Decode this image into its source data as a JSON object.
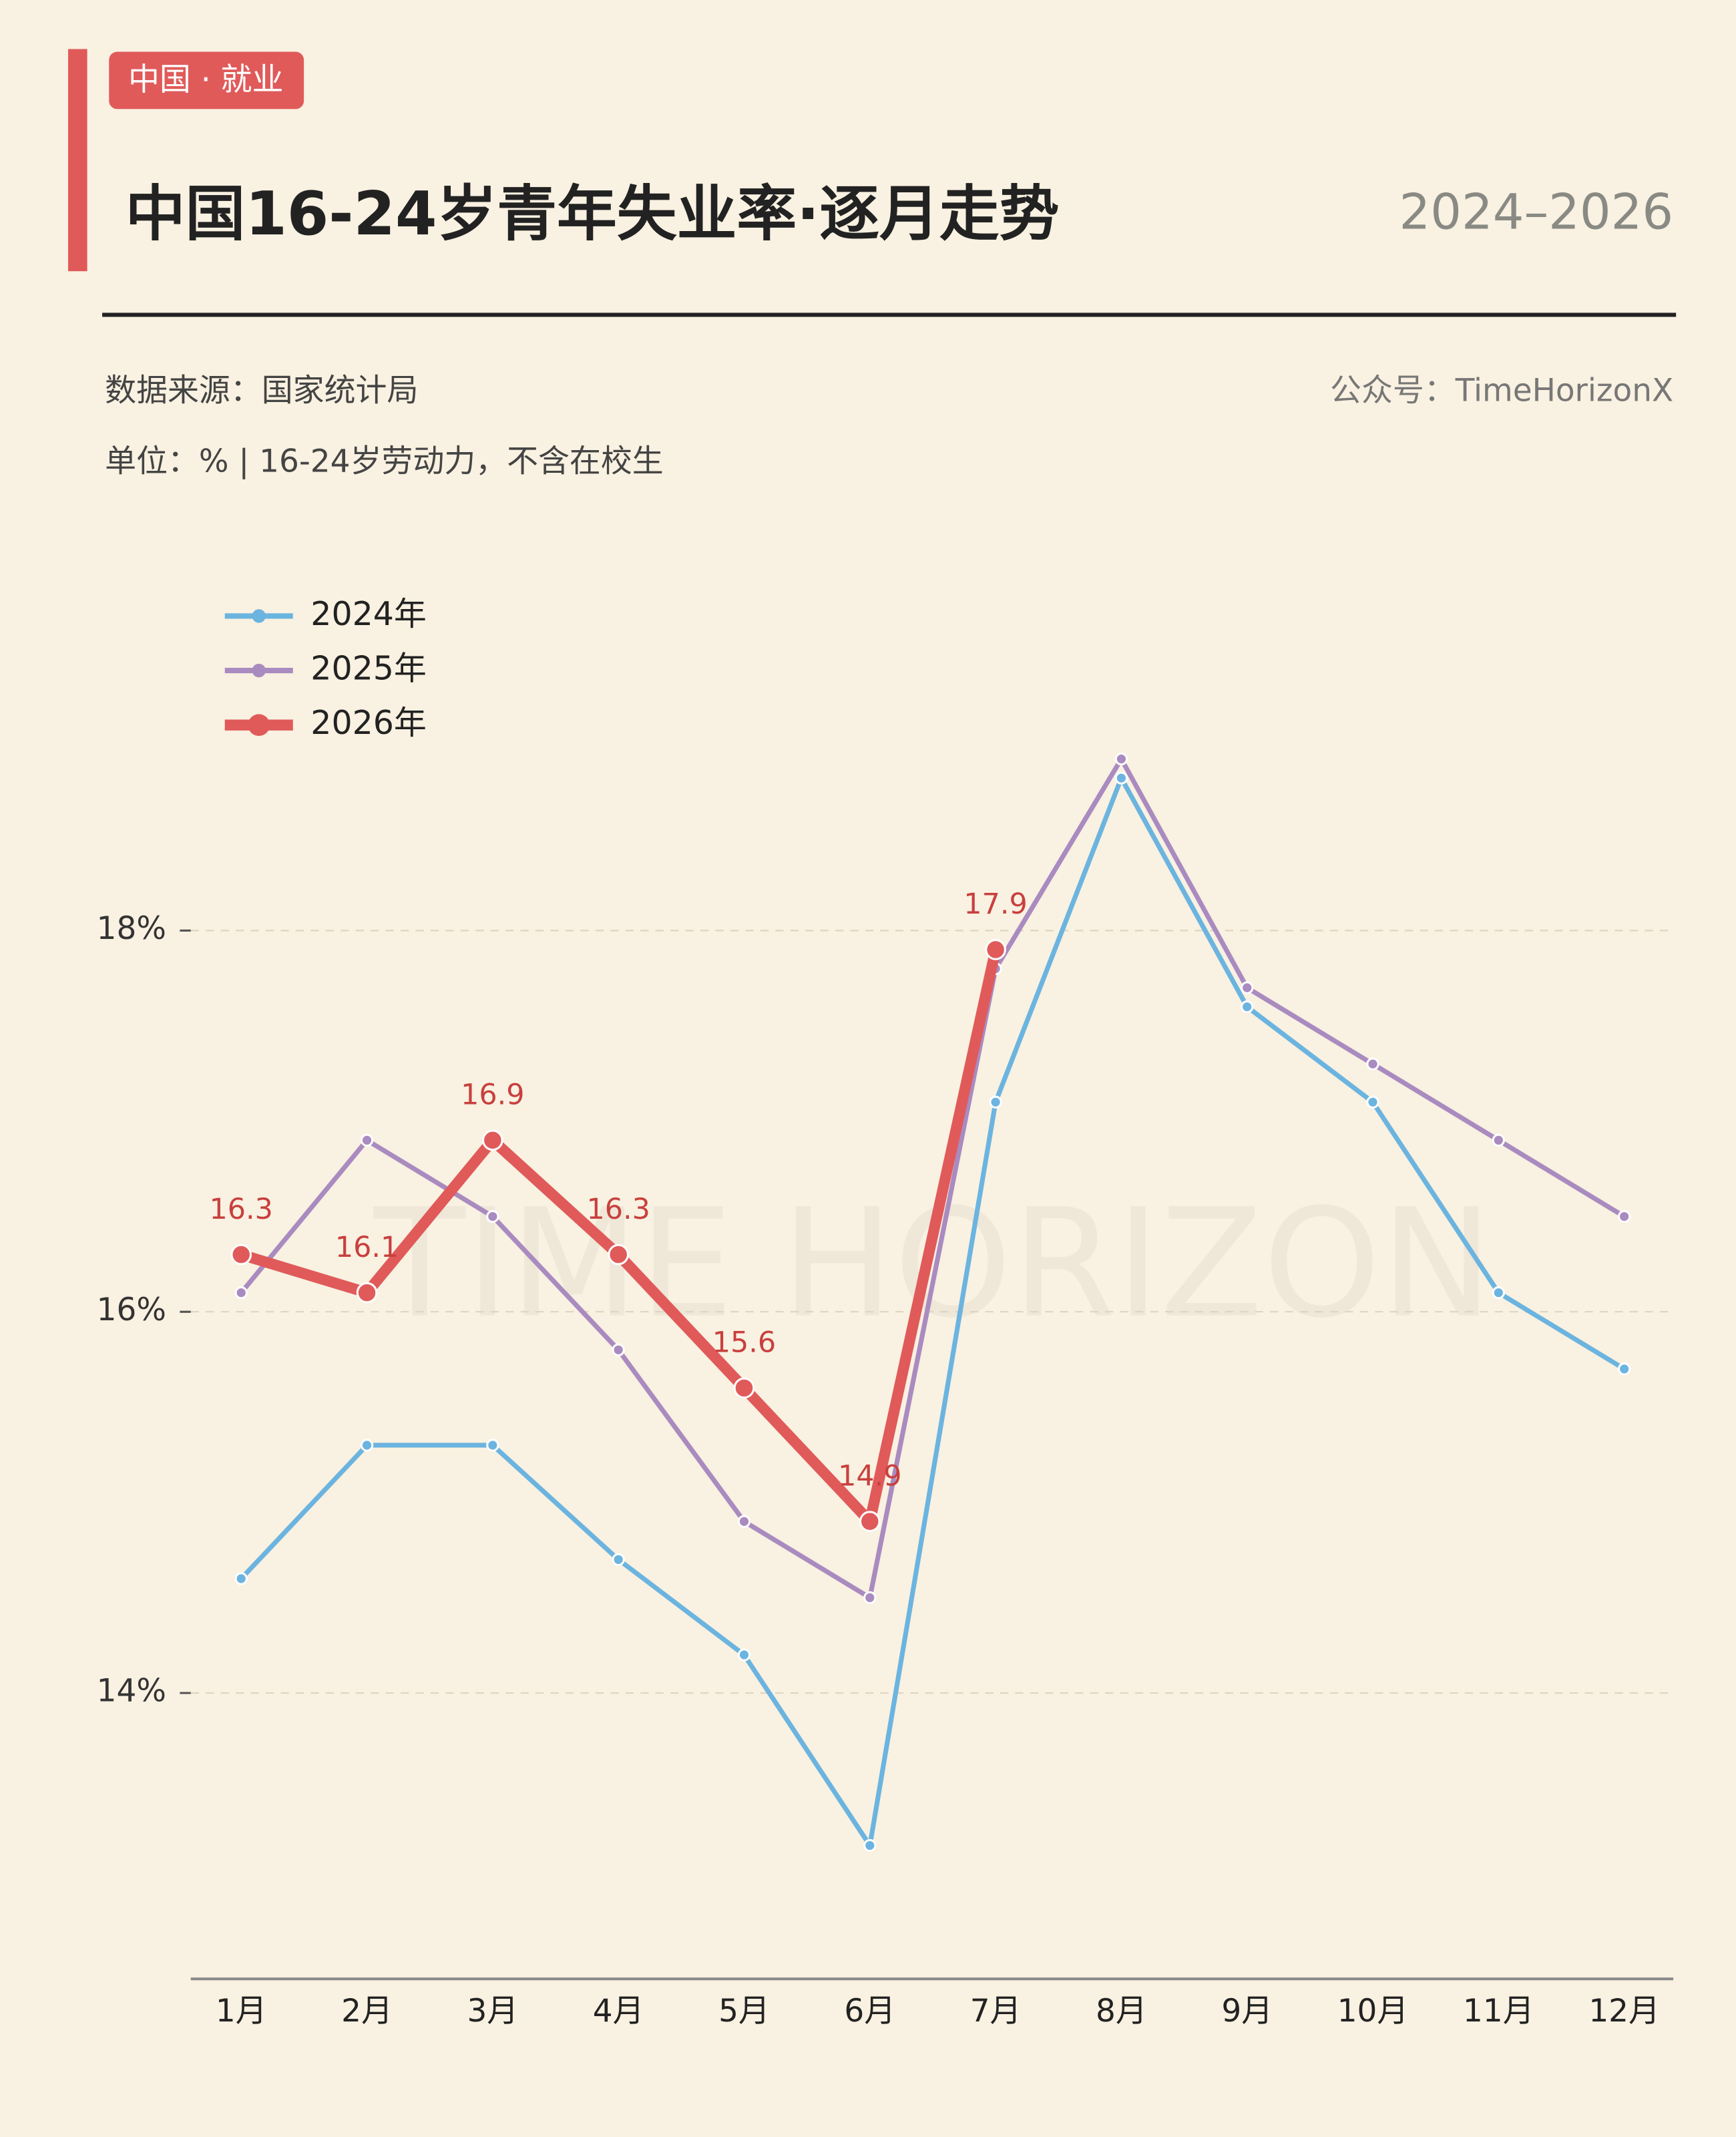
{
  "tag": "中国 · 就业",
  "chart_data": {
    "type": "line",
    "title": "中国16-24岁青年失业率·逐月走势",
    "subtitle": "2024–2026",
    "source": "数据来源：国家统计局",
    "credit": "公众号：TimeHorizonX",
    "unit_note": "单位：% | 16-24岁劳动力，不含在校生",
    "watermark": "TIME HORIZON",
    "categories": [
      "1月",
      "2月",
      "3月",
      "4月",
      "5月",
      "6月",
      "7月",
      "8月",
      "9月",
      "10月",
      "11月",
      "12月"
    ],
    "series": [
      {
        "name": "2024年",
        "color": "#6cb4e0",
        "values": [
          14.6,
          15.3,
          15.3,
          14.7,
          14.2,
          13.2,
          17.1,
          18.8,
          17.6,
          17.1,
          16.1,
          15.7
        ]
      },
      {
        "name": "2025年",
        "color": "#a98bc0",
        "values": [
          16.1,
          16.9,
          16.5,
          15.8,
          14.9,
          14.5,
          17.8,
          18.9,
          17.7,
          17.3,
          16.9,
          16.5
        ]
      },
      {
        "name": "2026年",
        "color": "#e05a5a",
        "values": [
          16.3,
          16.1,
          16.9,
          16.3,
          15.6,
          14.9,
          17.9,
          null,
          null,
          null,
          null,
          null
        ]
      }
    ],
    "ylim": [
      12.5,
      19.5
    ],
    "yticks": [
      {
        "value": 14,
        "label": "14%"
      },
      {
        "value": 16,
        "label": "16%"
      },
      {
        "value": 18,
        "label": "18%"
      }
    ],
    "grid": true,
    "legend": "top-left"
  }
}
